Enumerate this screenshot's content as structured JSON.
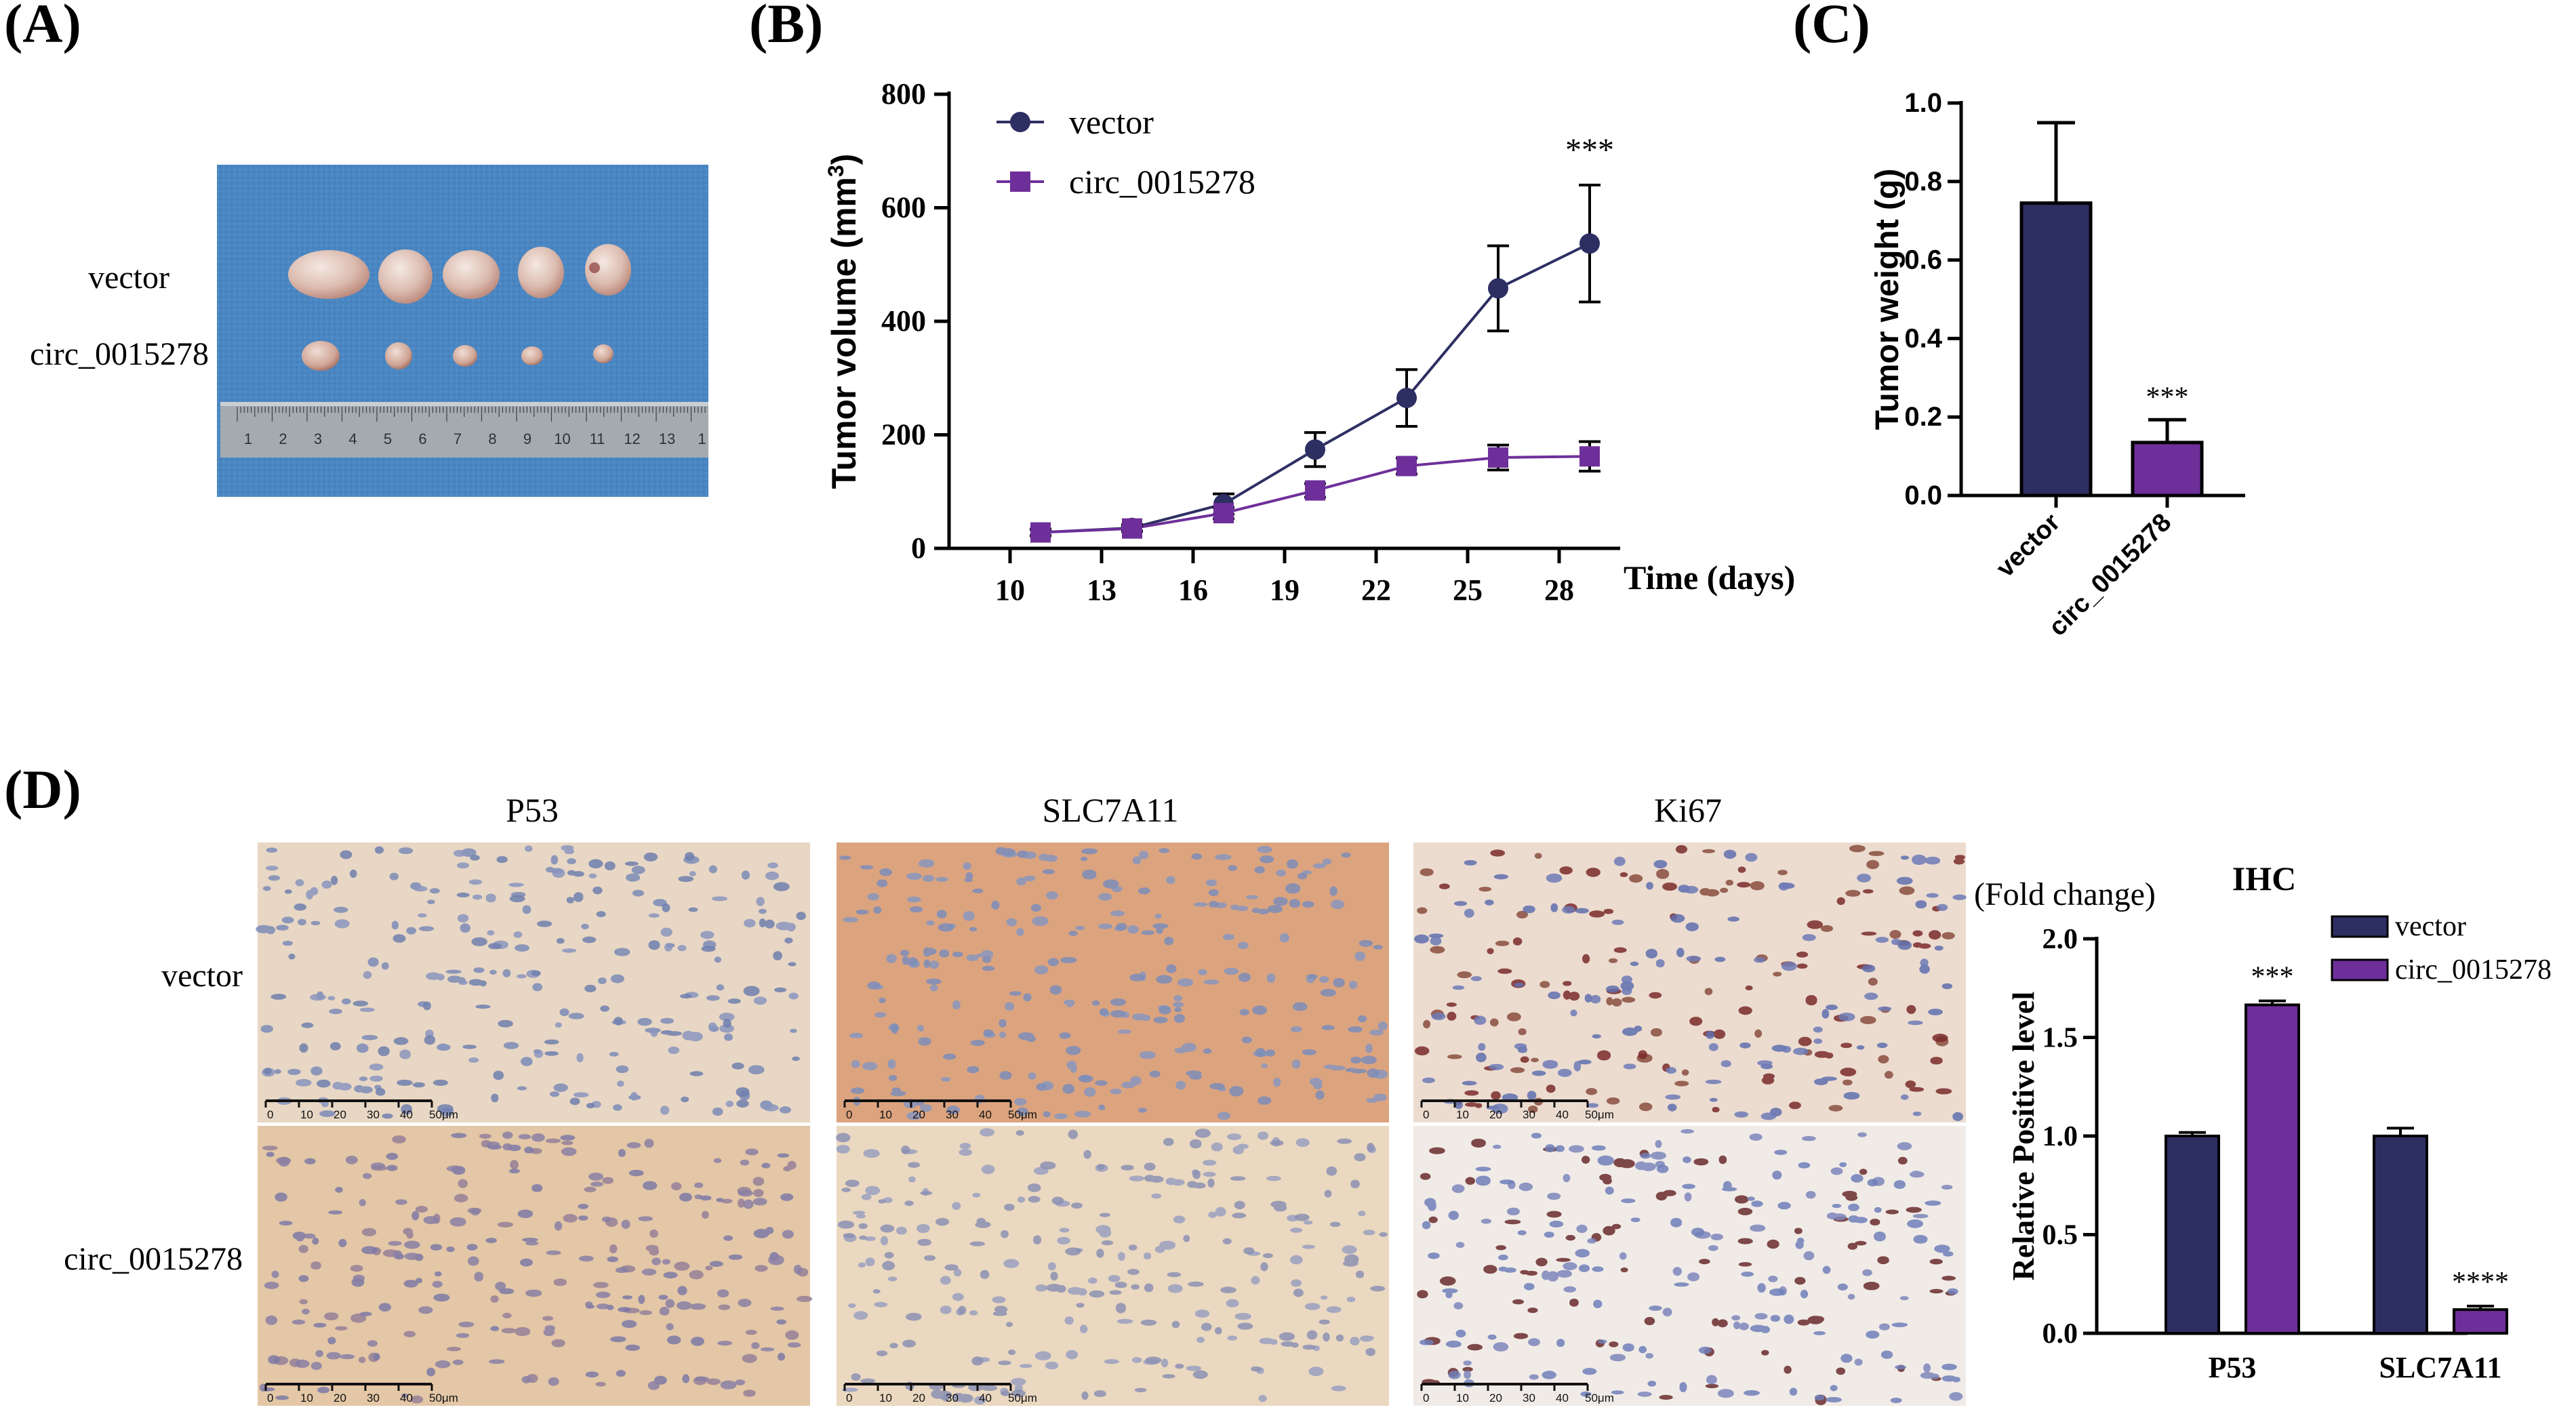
{
  "panels": {
    "A": {
      "letter": "(A)",
      "row_labels": [
        "vector",
        "circ_0015278"
      ],
      "ruler_numbers": [
        "1",
        "2",
        "3",
        "4",
        "5",
        "6",
        "7",
        "8",
        "9",
        "10",
        "11",
        "12",
        "13",
        "1"
      ]
    },
    "D": {
      "letter": "(D)",
      "column_titles": [
        "P53",
        "SLC7A11",
        "Ki67"
      ],
      "row_labels": [
        "vector",
        "circ_0015278"
      ],
      "scale_bar": {
        "ticks": [
          "0",
          "10",
          "20",
          "30",
          "40"
        ],
        "end_label": "50μm"
      }
    }
  },
  "colors": {
    "vector": "#2d2f63",
    "circ": "#6e2f9a",
    "mouse_bg": "#4a86c2",
    "ruler": "#9aa2a8"
  },
  "chart_data": [
    {
      "id": "B",
      "letter": "(B)",
      "type": "line",
      "xlabel": "Time (days)",
      "ylabel": "Tumor volume (mm3)",
      "xlim": [
        8,
        30
      ],
      "ylim": [
        0,
        800
      ],
      "xticks": [
        10,
        13,
        16,
        19,
        22,
        25,
        28
      ],
      "yticks": [
        0,
        200,
        400,
        600,
        800
      ],
      "x": [
        11,
        14,
        17,
        20,
        23,
        26,
        29
      ],
      "legend_position": "top-left",
      "significance_label": "***",
      "significance_x": 29,
      "series": [
        {
          "name": "vector",
          "marker": "circle",
          "color": "#2d2f63",
          "values": [
            28,
            36,
            78,
            174,
            265,
            458,
            537
          ],
          "errors": [
            6,
            6,
            18,
            30,
            50,
            75,
            103
          ]
        },
        {
          "name": "circ_0015278",
          "marker": "square",
          "color": "#6e2f9a",
          "values": [
            28,
            35,
            62,
            102,
            145,
            160,
            162
          ],
          "errors": [
            5,
            5,
            10,
            12,
            14,
            22,
            26
          ]
        }
      ]
    },
    {
      "id": "C",
      "letter": "(C)",
      "type": "bar",
      "ylabel": "Tumor weight (g)",
      "ylim": [
        0,
        1.0
      ],
      "yticks": [
        "0.0",
        "0.2",
        "0.4",
        "0.6",
        "0.8",
        "1.0"
      ],
      "categories": [
        "vector",
        "circ_0015278"
      ],
      "values": [
        0.745,
        0.135
      ],
      "errors": [
        0.205,
        0.058
      ],
      "significance": [
        "",
        "***"
      ]
    },
    {
      "id": "D-chart",
      "type": "bar",
      "title": "IHC",
      "unit_note": "(Fold change)",
      "ylabel": "Relative Positive level",
      "ylim": [
        0,
        2.0
      ],
      "yticks": [
        "0.0",
        "0.5",
        "1.0",
        "1.5",
        "2.0"
      ],
      "categories": [
        "P53",
        "SLC7A11"
      ],
      "legend_position": "top-right",
      "series": [
        {
          "name": "vector",
          "color": "#2d2f63",
          "values": [
            1.0,
            1.0
          ],
          "errors": [
            0.018,
            0.04
          ],
          "significance": [
            "",
            ""
          ]
        },
        {
          "name": "circ_0015278",
          "color": "#6e2f9a",
          "values": [
            1.665,
            0.12
          ],
          "errors": [
            0.02,
            0.018
          ],
          "significance": [
            "***",
            "****"
          ]
        }
      ]
    }
  ]
}
